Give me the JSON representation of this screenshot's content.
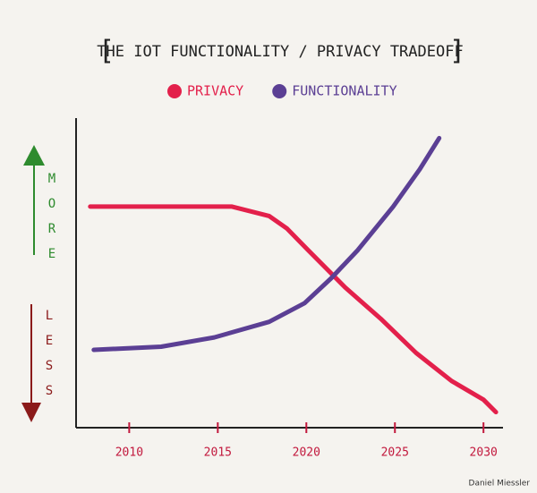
{
  "chart_data": {
    "type": "line",
    "title": "THE IOT FUNCTIONALITY / PRIVACY TRADEOFF",
    "annotations": {
      "more": "MORE",
      "less": "LESS",
      "credit": "Daniel Miessler"
    },
    "xlim": [
      2007,
      2031
    ],
    "xticks": [
      2010,
      2015,
      2020,
      2025,
      2030
    ],
    "ylim": [
      0,
      100
    ],
    "series": [
      {
        "name": "PRIVACY",
        "color": "#e3204b",
        "x": [
          2007.8,
          2012,
          2015.8,
          2017.9,
          2018.9,
          2020.1,
          2022.2,
          2024.2,
          2026.2,
          2028.2,
          2030,
          2030.7
        ],
        "values": [
          71,
          71,
          71,
          68,
          64,
          57,
          45,
          35,
          24,
          15,
          9,
          5
        ]
      },
      {
        "name": "FUNCTIONALITY",
        "color": "#5b3f94",
        "x": [
          2008,
          2011.8,
          2014.8,
          2017.9,
          2019.9,
          2021.4,
          2022.9,
          2024.9,
          2026.4,
          2027.5
        ],
        "values": [
          25,
          26,
          29,
          34,
          40,
          48,
          57,
          71,
          83,
          93
        ]
      }
    ]
  }
}
